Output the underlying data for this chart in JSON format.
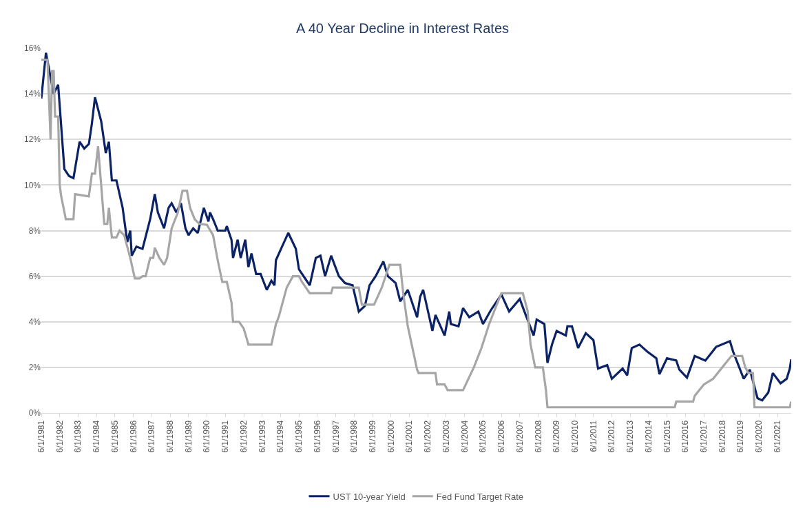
{
  "chart_data": {
    "type": "line",
    "title": "A 40 Year Decline in Interest Rates",
    "xlim": [
      "1981-06",
      "2022-03"
    ],
    "xticks": [
      {
        "value": "1981-06-01",
        "label": "6/1/1981"
      },
      {
        "value": "1982-06-01",
        "label": "6/1/1982"
      },
      {
        "value": "1983-06-01",
        "label": "6/1/1983"
      },
      {
        "value": "1984-06-01",
        "label": "6/1/1984"
      },
      {
        "value": "1985-06-01",
        "label": "6/1/1985"
      },
      {
        "value": "1986-06-01",
        "label": "6/1/1986"
      },
      {
        "value": "1987-06-01",
        "label": "6/1/1987"
      },
      {
        "value": "1988-06-01",
        "label": "6/1/1988"
      },
      {
        "value": "1989-06-01",
        "label": "6/1/1989"
      },
      {
        "value": "1990-06-01",
        "label": "6/1/1990"
      },
      {
        "value": "1991-06-01",
        "label": "6/1/1991"
      },
      {
        "value": "1992-06-01",
        "label": "6/1/1992"
      },
      {
        "value": "1993-06-01",
        "label": "6/1/1993"
      },
      {
        "value": "1994-06-01",
        "label": "6/1/1994"
      },
      {
        "value": "1995-06-01",
        "label": "6/1/1995"
      },
      {
        "value": "1996-06-01",
        "label": "6/1/1996"
      },
      {
        "value": "1997-06-01",
        "label": "6/1/1997"
      },
      {
        "value": "1998-06-01",
        "label": "6/1/1998"
      },
      {
        "value": "1999-06-01",
        "label": "6/1/1999"
      },
      {
        "value": "2000-06-01",
        "label": "6/1/2000"
      },
      {
        "value": "2001-06-01",
        "label": "6/1/2001"
      },
      {
        "value": "2002-06-01",
        "label": "6/1/2002"
      },
      {
        "value": "2003-06-01",
        "label": "6/1/2003"
      },
      {
        "value": "2004-06-01",
        "label": "6/1/2004"
      },
      {
        "value": "2005-06-01",
        "label": "6/1/2005"
      },
      {
        "value": "2006-06-01",
        "label": "6/1/2006"
      },
      {
        "value": "2007-06-01",
        "label": "6/1/2007"
      },
      {
        "value": "2008-06-01",
        "label": "6/1/2008"
      },
      {
        "value": "2009-06-01",
        "label": "6/1/2009"
      },
      {
        "value": "2010-06-01",
        "label": "6/1/2010"
      },
      {
        "value": "2011-06-01",
        "label": "6/1/2011"
      },
      {
        "value": "2012-06-01",
        "label": "6/1/2012"
      },
      {
        "value": "2013-06-01",
        "label": "6/1/2013"
      },
      {
        "value": "2014-06-01",
        "label": "6/1/2014"
      },
      {
        "value": "2015-06-01",
        "label": "6/1/2015"
      },
      {
        "value": "2016-06-01",
        "label": "6/1/2016"
      },
      {
        "value": "2017-06-01",
        "label": "6/1/2017"
      },
      {
        "value": "2018-06-01",
        "label": "6/1/2018"
      },
      {
        "value": "2019-06-01",
        "label": "6/1/2019"
      },
      {
        "value": "2020-06-01",
        "label": "6/1/2020"
      },
      {
        "value": "2021-06-01",
        "label": "6/1/2021"
      }
    ],
    "ylim": [
      0,
      16
    ],
    "yticks": [
      {
        "value": 0,
        "label": "0%"
      },
      {
        "value": 2,
        "label": "2%"
      },
      {
        "value": 4,
        "label": "4%"
      },
      {
        "value": 6,
        "label": "6%"
      },
      {
        "value": 8,
        "label": "8%"
      },
      {
        "value": 10,
        "label": "10%"
      },
      {
        "value": 12,
        "label": "12%"
      },
      {
        "value": 14,
        "label": "14%"
      },
      {
        "value": 16,
        "label": "16%"
      }
    ],
    "grid": "y",
    "legend": "bottom",
    "marker": "none",
    "line_style": "solid",
    "series": [
      {
        "name": "UST 10-year Yield",
        "color": "#0b2265",
        "x": [
          "1981-06",
          "1981-09",
          "1982-02",
          "1982-05",
          "1982-09",
          "1982-12",
          "1983-03",
          "1983-07",
          "1983-10",
          "1984-01",
          "1984-03",
          "1984-05",
          "1984-09",
          "1984-12",
          "1985-02",
          "1985-04",
          "1985-07",
          "1985-11",
          "1986-02",
          "1986-04",
          "1986-05",
          "1986-08",
          "1986-12",
          "1987-05",
          "1987-08",
          "1987-10",
          "1988-02",
          "1988-05",
          "1988-07",
          "1988-10",
          "1989-01",
          "1989-04",
          "1989-06",
          "1989-09",
          "1989-12",
          "1990-04",
          "1990-07",
          "1990-08",
          "1990-10",
          "1991-01",
          "1991-06",
          "1991-07",
          "1991-10",
          "1991-11",
          "1992-02",
          "1992-04",
          "1992-07",
          "1992-09",
          "1992-11",
          "1993-02",
          "1993-05",
          "1993-09",
          "1993-12",
          "1994-02",
          "1994-03",
          "1994-07",
          "1994-11",
          "1995-04",
          "1995-06",
          "1995-11",
          "1996-01",
          "1996-05",
          "1996-08",
          "1996-11",
          "1997-03",
          "1997-08",
          "1997-12",
          "1998-05",
          "1998-09",
          "1999-01",
          "1999-04",
          "1999-08",
          "2000-01",
          "2000-04",
          "2000-09",
          "2000-12",
          "2001-05",
          "2001-11",
          "2002-01",
          "2002-03",
          "2002-09",
          "2002-11",
          "2003-05",
          "2003-08",
          "2003-09",
          "2004-02",
          "2004-05",
          "2004-09",
          "2005-03",
          "2005-06",
          "2005-11",
          "2006-06",
          "2006-11",
          "2007-06",
          "2007-09",
          "2008-03",
          "2008-05",
          "2008-10",
          "2008-12",
          "2009-03",
          "2009-06",
          "2009-12",
          "2010-01",
          "2010-04",
          "2010-08",
          "2011-01",
          "2011-06",
          "2011-09",
          "2012-03",
          "2012-06",
          "2013-01",
          "2013-04",
          "2013-07",
          "2013-12",
          "2014-05",
          "2014-11",
          "2015-01",
          "2015-06",
          "2015-12",
          "2016-02",
          "2016-07",
          "2016-12",
          "2017-07",
          "2018-02",
          "2018-11",
          "2019-01",
          "2019-08",
          "2019-12",
          "2020-05",
          "2020-08",
          "2020-12",
          "2021-03",
          "2021-08",
          "2021-12",
          "2022-02",
          "2022-03"
        ],
        "values": [
          13.8,
          15.8,
          14.0,
          14.4,
          10.7,
          10.4,
          10.3,
          11.9,
          11.6,
          11.8,
          12.7,
          13.85,
          12.8,
          11.4,
          11.9,
          10.2,
          10.2,
          9.0,
          7.5,
          8.0,
          6.9,
          7.3,
          7.2,
          8.5,
          9.6,
          8.8,
          8.1,
          9.0,
          9.2,
          8.8,
          9.2,
          8.1,
          7.8,
          8.1,
          7.9,
          9.0,
          8.4,
          8.8,
          8.5,
          8.0,
          8.0,
          8.2,
          7.6,
          6.8,
          7.6,
          6.8,
          7.6,
          6.4,
          7.0,
          6.1,
          6.1,
          5.4,
          5.8,
          5.6,
          6.7,
          7.3,
          7.9,
          7.2,
          6.3,
          5.8,
          5.6,
          6.8,
          6.9,
          6.0,
          6.9,
          6.0,
          5.7,
          5.6,
          4.45,
          4.7,
          5.6,
          6.0,
          6.65,
          6.0,
          5.7,
          4.9,
          5.4,
          4.2,
          5.1,
          5.4,
          3.6,
          4.3,
          3.4,
          4.45,
          3.9,
          3.8,
          4.6,
          4.2,
          4.45,
          3.9,
          4.5,
          5.2,
          4.45,
          5.0,
          4.45,
          3.4,
          4.1,
          3.9,
          2.2,
          3.0,
          3.6,
          3.4,
          3.8,
          3.8,
          2.85,
          3.5,
          3.2,
          1.95,
          2.1,
          1.5,
          1.95,
          1.65,
          2.85,
          3.0,
          2.7,
          2.4,
          1.7,
          2.4,
          2.3,
          1.9,
          1.55,
          2.5,
          2.3,
          2.9,
          3.15,
          2.7,
          1.5,
          1.9,
          0.65,
          0.55,
          0.9,
          1.75,
          1.3,
          1.5,
          1.95,
          2.35
        ]
      },
      {
        "name": "Fed Fund Target Rate",
        "color": "#a6a6a6",
        "x": [
          "1981-06",
          "1981-10",
          "1981-12",
          "1982-01",
          "1982-02",
          "1982-03",
          "1982-05",
          "1982-06",
          "1982-07",
          "1982-10",
          "1983-03",
          "1983-04",
          "1984-01",
          "1984-03",
          "1984-05",
          "1984-07",
          "1984-09",
          "1984-11",
          "1985-01",
          "1985-02",
          "1985-04",
          "1985-07",
          "1985-09",
          "1985-12",
          "1986-04",
          "1986-07",
          "1986-10",
          "1986-12",
          "1987-02",
          "1987-05",
          "1987-07",
          "1987-08",
          "1987-11",
          "1988-02",
          "1988-04",
          "1988-07",
          "1988-11",
          "1989-02",
          "1989-05",
          "1989-07",
          "1989-10",
          "1990-01",
          "1990-06",
          "1990-10",
          "1991-01",
          "1991-04",
          "1991-07",
          "1991-10",
          "1991-11",
          "1992-03",
          "1992-06",
          "1992-09",
          "1993-12",
          "1994-03",
          "1994-05",
          "1994-07",
          "1994-10",
          "1995-02",
          "1995-06",
          "1995-08",
          "1996-01",
          "1997-03",
          "1997-04",
          "1998-09",
          "1998-11",
          "1999-07",
          "1999-12",
          "2000-05",
          "2000-12",
          "2001-02",
          "2001-05",
          "2001-11",
          "2001-12",
          "2002-11",
          "2002-12",
          "2003-05",
          "2003-07",
          "2004-05",
          "2004-12",
          "2005-05",
          "2005-10",
          "2006-03",
          "2006-06",
          "2007-08",
          "2007-11",
          "2008-01",
          "2008-04",
          "2008-09",
          "2008-11",
          "2008-12",
          "2015-11",
          "2015-12",
          "2016-11",
          "2016-12",
          "2017-03",
          "2017-06",
          "2017-12",
          "2018-03",
          "2018-06",
          "2018-09",
          "2018-12",
          "2019-07",
          "2019-08",
          "2019-09",
          "2019-11",
          "2020-02",
          "2020-03",
          "2022-02",
          "2022-03"
        ],
        "values": [
          15.5,
          15.5,
          12.0,
          15.0,
          15.0,
          13.0,
          13.0,
          10.0,
          9.5,
          8.5,
          8.5,
          9.6,
          9.5,
          10.5,
          10.5,
          11.7,
          10.0,
          8.3,
          8.3,
          9.0,
          7.7,
          7.7,
          8.0,
          7.8,
          6.8,
          5.9,
          5.9,
          6.0,
          6.0,
          6.8,
          6.8,
          7.25,
          6.8,
          6.5,
          6.8,
          8.1,
          8.8,
          9.75,
          9.75,
          9.0,
          8.5,
          8.3,
          8.25,
          7.8,
          6.7,
          5.75,
          5.75,
          4.85,
          4.0,
          4.0,
          3.7,
          3.0,
          3.0,
          3.9,
          4.25,
          4.75,
          5.5,
          6.0,
          6.0,
          5.75,
          5.25,
          5.25,
          5.5,
          5.5,
          4.75,
          4.75,
          5.5,
          6.5,
          6.5,
          5.2,
          3.8,
          1.9,
          1.75,
          1.75,
          1.25,
          1.25,
          1.0,
          1.0,
          2.0,
          2.85,
          3.9,
          4.75,
          5.25,
          5.25,
          4.5,
          3.0,
          2.0,
          2.0,
          1.0,
          0.25,
          0.25,
          0.5,
          0.5,
          0.75,
          1.0,
          1.25,
          1.5,
          1.75,
          2.0,
          2.25,
          2.5,
          2.5,
          2.25,
          2.0,
          1.75,
          1.75,
          0.25,
          0.25,
          0.5
        ]
      }
    ]
  }
}
